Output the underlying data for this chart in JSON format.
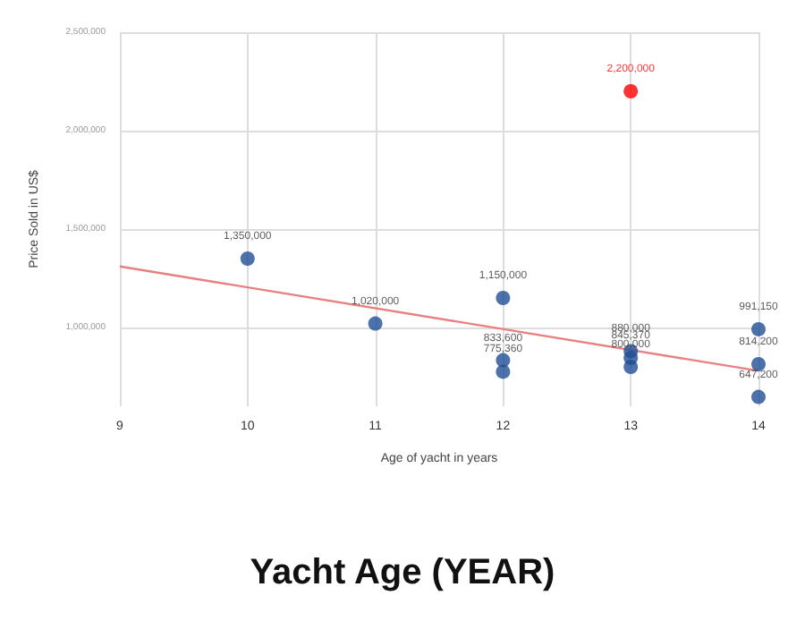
{
  "chart_data": {
    "type": "scatter",
    "title": "Yacht Age (YEAR)",
    "xlabel": "Age of yacht in years",
    "ylabel": "Price Sold in US$",
    "xlim": [
      9,
      14
    ],
    "xticks": [
      9,
      10,
      11,
      12,
      13,
      14
    ],
    "ylim": [
      600000,
      2500000
    ],
    "yticks": [
      {
        "value": 1000000,
        "label": "1,000,000"
      },
      {
        "value": 1500000,
        "label": "1,500,000"
      },
      {
        "value": 2000000,
        "label": "2,000,000"
      },
      {
        "value": 2500000,
        "label": "2,500,000"
      }
    ],
    "grid": true,
    "marker": "circle",
    "series": [
      {
        "x": [
          10,
          11,
          12,
          12,
          12,
          13,
          13,
          13,
          13,
          14,
          14,
          14
        ],
        "values": [
          1350000,
          1020000,
          1150000,
          833600,
          775360,
          2200000,
          880000,
          845370,
          800000,
          991150,
          814200,
          647200
        ],
        "value_labels": [
          "1,350,000",
          "1,020,000",
          "1,150,000",
          "833,600",
          "775,360",
          "2,200,000",
          "880,000",
          "845,370",
          "800,000",
          "991,150",
          "814,200",
          "647,200"
        ],
        "colors": [
          "#1f4e96",
          "#1f4e96",
          "#1f4e96",
          "#1f4e96",
          "#1f4e96",
          "#ff0000",
          "#1f4e96",
          "#1f4e96",
          "#1f4e96",
          "#1f4e96",
          "#1f4e96",
          "#1f4e96"
        ]
      },
      {
        "type": "line",
        "x": [
          9,
          14
        ],
        "values": [
          1310000,
          780000
        ],
        "color": "#e88080",
        "marker": "none"
      }
    ]
  }
}
